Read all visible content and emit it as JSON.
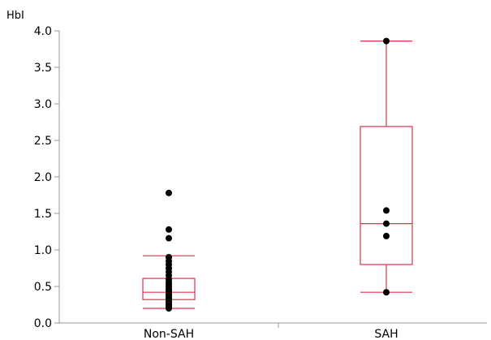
{
  "chart_data": {
    "type": "boxplot",
    "ylabel": "HbI",
    "ylim": [
      0.0,
      4.0
    ],
    "yticks": [
      "0.0",
      "0.5",
      "1.0",
      "1.5",
      "2.0",
      "2.5",
      "3.0",
      "3.5",
      "4.0"
    ],
    "categories": [
      "Non-SAH",
      "SAH"
    ],
    "box_color": "#e0304a",
    "point_color": "#000000",
    "axis_color": "#999999",
    "boxes": [
      {
        "name": "Non-SAH",
        "whisker_low": 0.2,
        "q1": 0.32,
        "median": 0.42,
        "q3": 0.61,
        "whisker_high": 0.92,
        "points": [
          0.2,
          0.21,
          0.23,
          0.25,
          0.27,
          0.29,
          0.31,
          0.33,
          0.35,
          0.37,
          0.39,
          0.41,
          0.43,
          0.45,
          0.47,
          0.5,
          0.53,
          0.56,
          0.6,
          0.65,
          0.7,
          0.75,
          0.8,
          0.85,
          0.9,
          1.16,
          1.28,
          1.78
        ]
      },
      {
        "name": "SAH",
        "whisker_low": 0.42,
        "q1": 0.8,
        "median": 1.36,
        "q3": 2.69,
        "whisker_high": 3.86,
        "points": [
          0.42,
          1.19,
          1.36,
          1.54,
          3.86
        ]
      }
    ]
  }
}
